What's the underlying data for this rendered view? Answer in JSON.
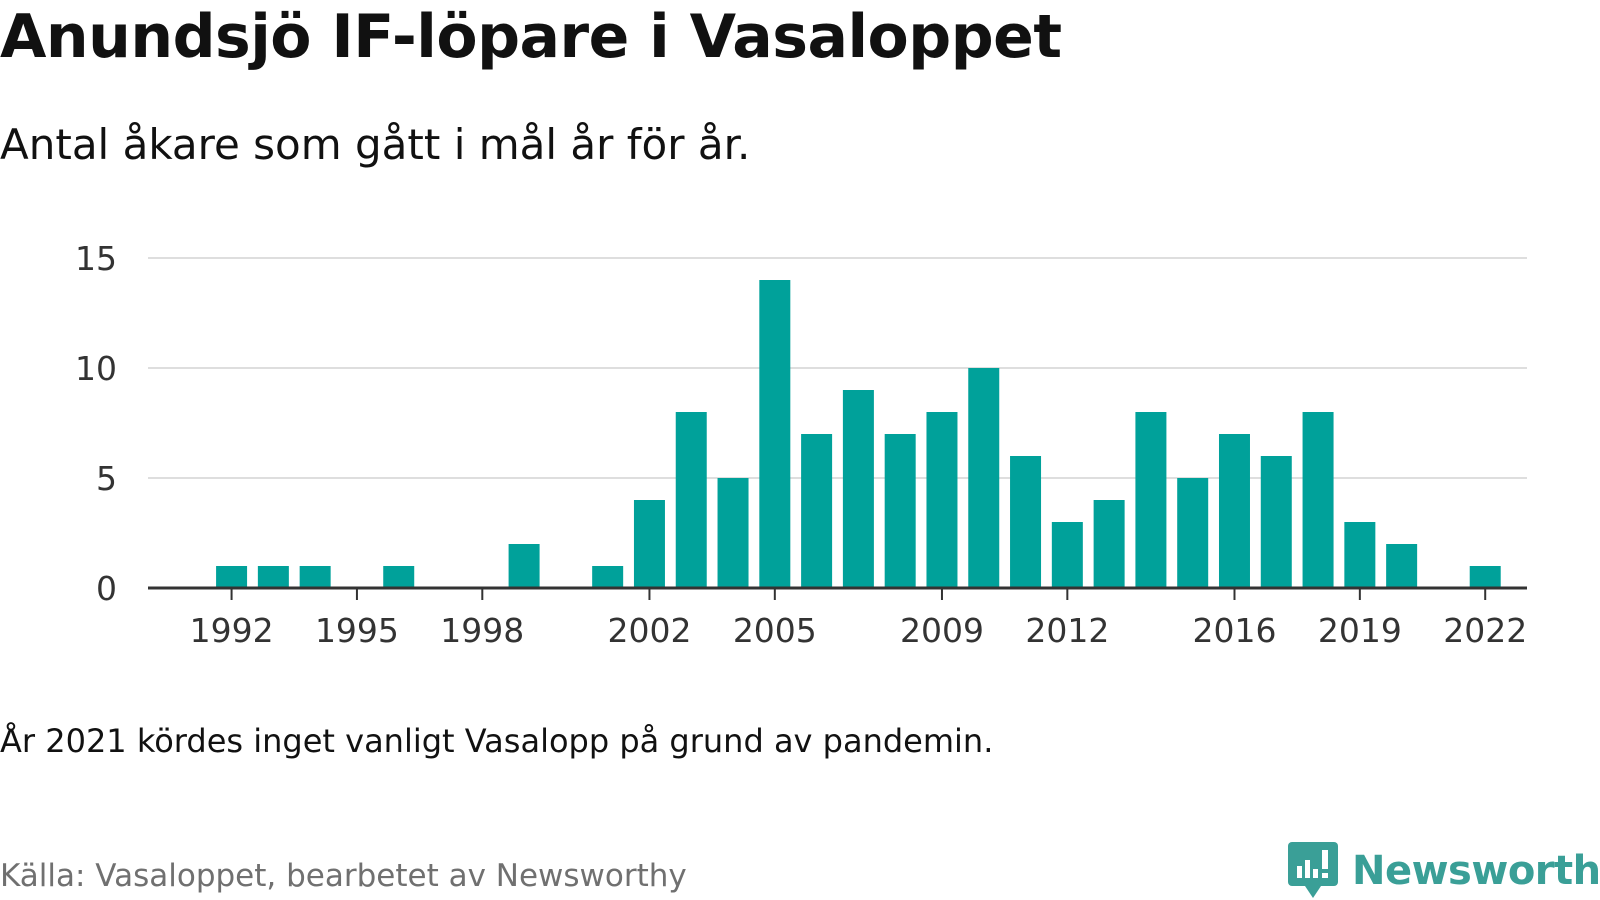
{
  "title": "Anundsjö IF-löpare i Vasaloppet",
  "subtitle": "Antal åkare som gått i mål år för år.",
  "note": "År 2021 kördes inget vanligt Vasalopp på grund av pandemin.",
  "source": "Källa: Vasaloppet, bearbetet av Newsworthy",
  "brand": {
    "name": "Newsworthy",
    "icon": "newsworthy-logo-icon"
  },
  "colors": {
    "bar": "#00a19a",
    "grid": "#dedede",
    "axis": "#333333",
    "tick_text": "#333333",
    "brand": "#3a9f97"
  },
  "chart_data": {
    "type": "bar",
    "title": "Anundsjö IF-löpare i Vasaloppet",
    "subtitle": "Antal åkare som gått i mål år för år.",
    "xlabel": "",
    "ylabel": "",
    "ylim": [
      0,
      15
    ],
    "yticks": [
      0,
      5,
      10,
      15
    ],
    "xlim": [
      1990,
      2023
    ],
    "xticks": [
      1992,
      1995,
      1998,
      2002,
      2005,
      2009,
      2012,
      2016,
      2019,
      2022
    ],
    "grid": true,
    "legend": "none",
    "points": [
      {
        "x": 1992,
        "y": 1
      },
      {
        "x": 1993,
        "y": 1
      },
      {
        "x": 1994,
        "y": 1
      },
      {
        "x": 1996,
        "y": 1
      },
      {
        "x": 1999,
        "y": 2
      },
      {
        "x": 2001,
        "y": 1
      },
      {
        "x": 2002,
        "y": 4
      },
      {
        "x": 2003,
        "y": 8
      },
      {
        "x": 2004,
        "y": 5
      },
      {
        "x": 2005,
        "y": 14
      },
      {
        "x": 2006,
        "y": 7
      },
      {
        "x": 2007,
        "y": 9
      },
      {
        "x": 2008,
        "y": 7
      },
      {
        "x": 2009,
        "y": 8
      },
      {
        "x": 2010,
        "y": 10
      },
      {
        "x": 2011,
        "y": 6
      },
      {
        "x": 2012,
        "y": 3
      },
      {
        "x": 2013,
        "y": 4
      },
      {
        "x": 2014,
        "y": 8
      },
      {
        "x": 2015,
        "y": 5
      },
      {
        "x": 2016,
        "y": 7
      },
      {
        "x": 2017,
        "y": 6
      },
      {
        "x": 2018,
        "y": 8
      },
      {
        "x": 2019,
        "y": 3
      },
      {
        "x": 2020,
        "y": 2
      },
      {
        "x": 2022,
        "y": 1
      }
    ]
  }
}
